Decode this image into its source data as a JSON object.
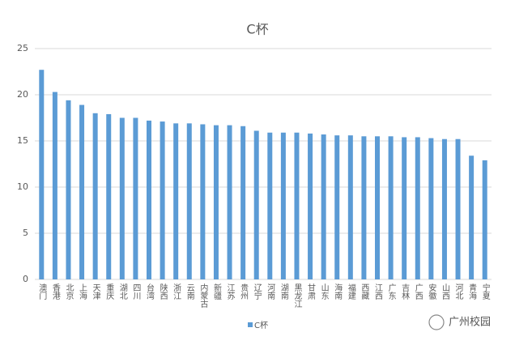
{
  "chart_data": {
    "type": "bar",
    "title": "C杯",
    "categories": [
      "澳门",
      "香港",
      "北京",
      "上海",
      "天津",
      "重庆",
      "湖北",
      "四川",
      "台湾",
      "陕西",
      "浙江",
      "云南",
      "内蒙古",
      "新疆",
      "江苏",
      "贵州",
      "辽宁",
      "河南",
      "湖南",
      "黑龙江",
      "甘肃",
      "山东",
      "海南",
      "福建",
      "西藏",
      "江西",
      "广东",
      "吉林",
      "广西",
      "安徽",
      "山西",
      "河北",
      "青海",
      "宁夏"
    ],
    "series": [
      {
        "name": "C杯",
        "color": "#5b9bd5",
        "values": [
          22.7,
          20.3,
          19.4,
          18.9,
          18.0,
          17.9,
          17.5,
          17.5,
          17.2,
          17.1,
          16.9,
          16.9,
          16.8,
          16.7,
          16.7,
          16.6,
          16.1,
          15.9,
          15.9,
          15.9,
          15.8,
          15.7,
          15.6,
          15.6,
          15.5,
          15.5,
          15.5,
          15.4,
          15.4,
          15.3,
          15.2,
          15.2,
          13.4,
          12.9
        ]
      }
    ],
    "ylim": [
      0,
      25
    ],
    "yticks": [
      0,
      5,
      10,
      15,
      20,
      25
    ],
    "grid": true,
    "legend": "bottom",
    "watermark": "广州校园"
  }
}
